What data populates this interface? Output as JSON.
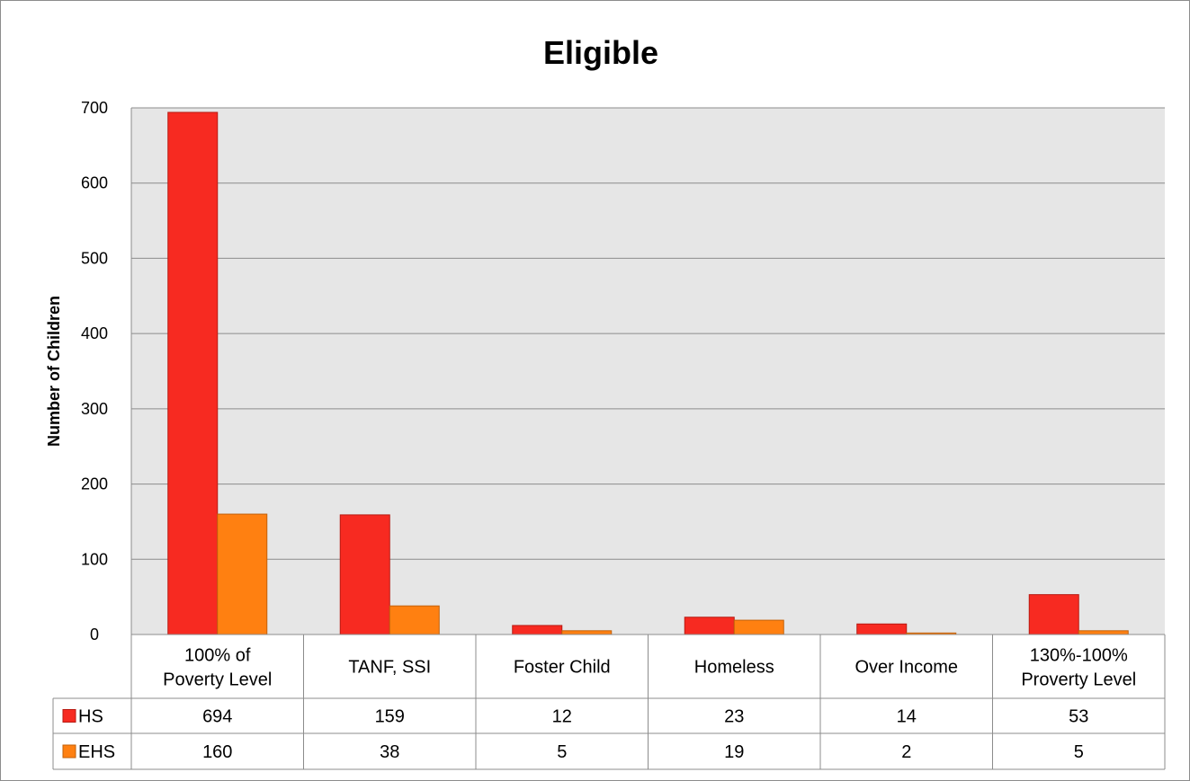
{
  "chart_data": {
    "type": "bar",
    "title": "Eligible",
    "ylabel": "Number of Children",
    "xlabel": "",
    "ylim": [
      0,
      700
    ],
    "yticks": [
      0,
      100,
      200,
      300,
      400,
      500,
      600,
      700
    ],
    "categories": [
      [
        "100% of",
        "Poverty Level"
      ],
      [
        "TANF, SSI"
      ],
      [
        "Foster Child"
      ],
      [
        "Homeless"
      ],
      [
        "Over Income"
      ],
      [
        "130%-100%",
        "Proverty Level"
      ]
    ],
    "series": [
      {
        "name": "HS",
        "values": [
          694,
          159,
          12,
          23,
          14,
          53
        ],
        "color": "#F72A21",
        "stroke": "#B81A12"
      },
      {
        "name": "EHS",
        "values": [
          160,
          38,
          5,
          19,
          2,
          5
        ],
        "color": "#FF8011",
        "stroke": "#C2600A"
      }
    ],
    "grid": true,
    "plot_background": "#E6E6E6",
    "gridline_color": "#8C8C8C",
    "legend": "data-table",
    "data_table": true
  }
}
